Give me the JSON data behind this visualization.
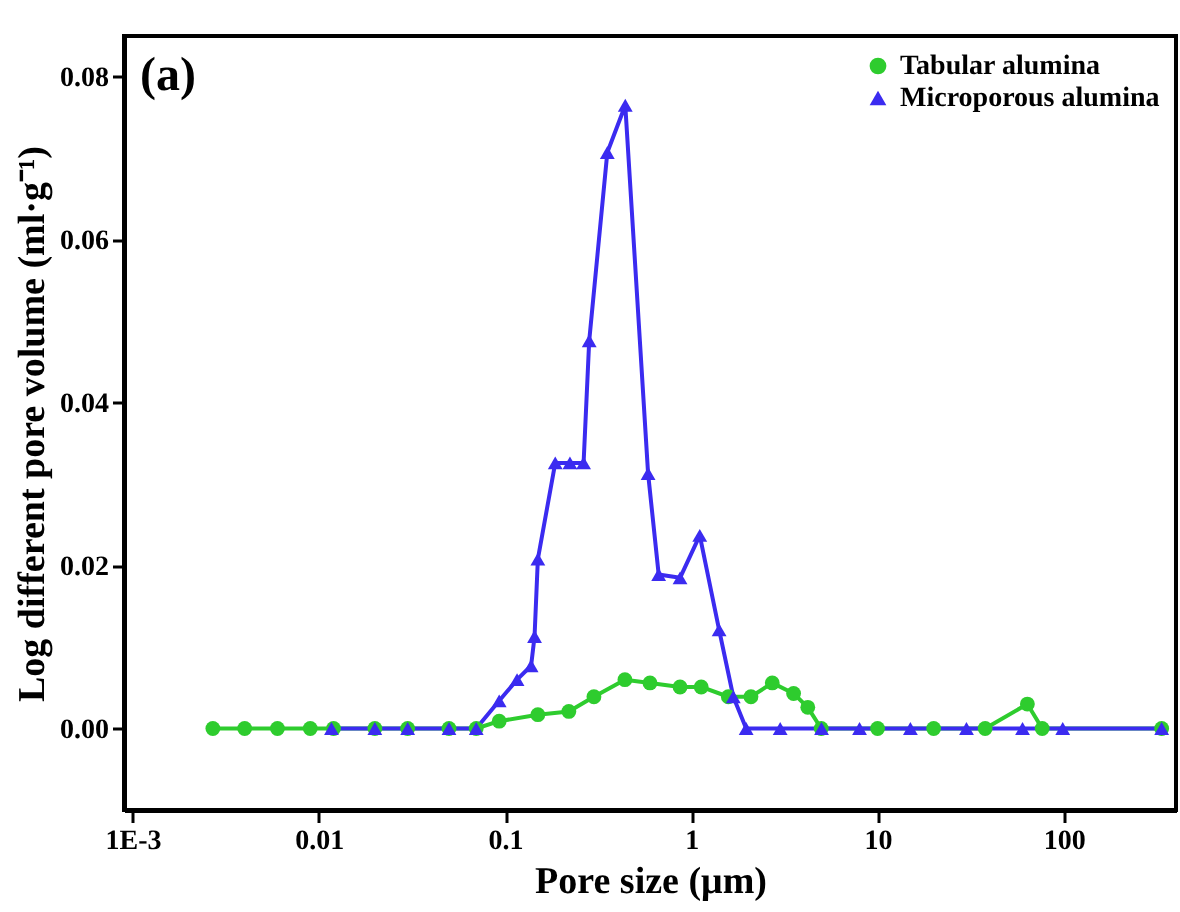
{
  "chart_data": {
    "type": "line",
    "xlabel": "Pore size (μm)",
    "ylabel": "Log different pore volume (ml·g⁻¹)",
    "annotations": [
      "(a)"
    ],
    "log": "x",
    "xlim": [
      0.0009,
      400
    ],
    "xticks": [
      {
        "value": 0.001,
        "label": "1E-3"
      },
      0.01,
      0.1,
      1,
      10,
      100
    ],
    "ylim": [
      -0.01,
      0.085
    ],
    "yticks": [
      {
        "value": 0,
        "label": "0.00"
      },
      0.02,
      0.04,
      0.06,
      0.08
    ],
    "grid": false,
    "legend": "top right",
    "series": [
      {
        "name": "Tabular alumina",
        "color": "#2ecc2e",
        "marker": "circle",
        "x": [
          0.0027,
          0.004,
          0.006,
          0.009,
          0.012,
          0.02,
          0.03,
          0.05,
          0.07,
          0.093,
          0.15,
          0.22,
          0.3,
          0.44,
          0.6,
          0.87,
          1.13,
          1.58,
          2.09,
          2.72,
          3.54,
          4.22,
          4.98,
          10,
          20,
          37.8,
          63.7,
          76.5,
          335
        ],
        "values": [
          0,
          0,
          0,
          0,
          0,
          0,
          0,
          0,
          0,
          0.0009,
          0.0017,
          0.0021,
          0.0039,
          0.006,
          0.0056,
          0.0051,
          0.0051,
          0.0039,
          0.0039,
          0.0056,
          0.0043,
          0.0026,
          0,
          0,
          0,
          0,
          0.003,
          0,
          0
        ]
      },
      {
        "name": "Microporous alumina",
        "color": "#3b2bf0",
        "marker": "triangle",
        "x": [
          0.0117,
          0.02,
          0.03,
          0.05,
          0.07,
          0.093,
          0.116,
          0.138,
          0.144,
          0.15,
          0.186,
          0.223,
          0.264,
          0.283,
          0.354,
          0.442,
          0.586,
          0.668,
          0.87,
          1.11,
          1.41,
          1.68,
          1.97,
          3,
          5,
          8,
          15,
          30,
          60,
          98.6,
          335
        ],
        "values": [
          0,
          0,
          0,
          0,
          0,
          0.0034,
          0.006,
          0.0077,
          0.0113,
          0.0208,
          0.0326,
          0.0326,
          0.0326,
          0.0476,
          0.0707,
          0.0765,
          0.0313,
          0.0189,
          0.0185,
          0.0237,
          0.0121,
          0.0039,
          0,
          0,
          0,
          0,
          0,
          0,
          0,
          0,
          0
        ]
      }
    ]
  }
}
